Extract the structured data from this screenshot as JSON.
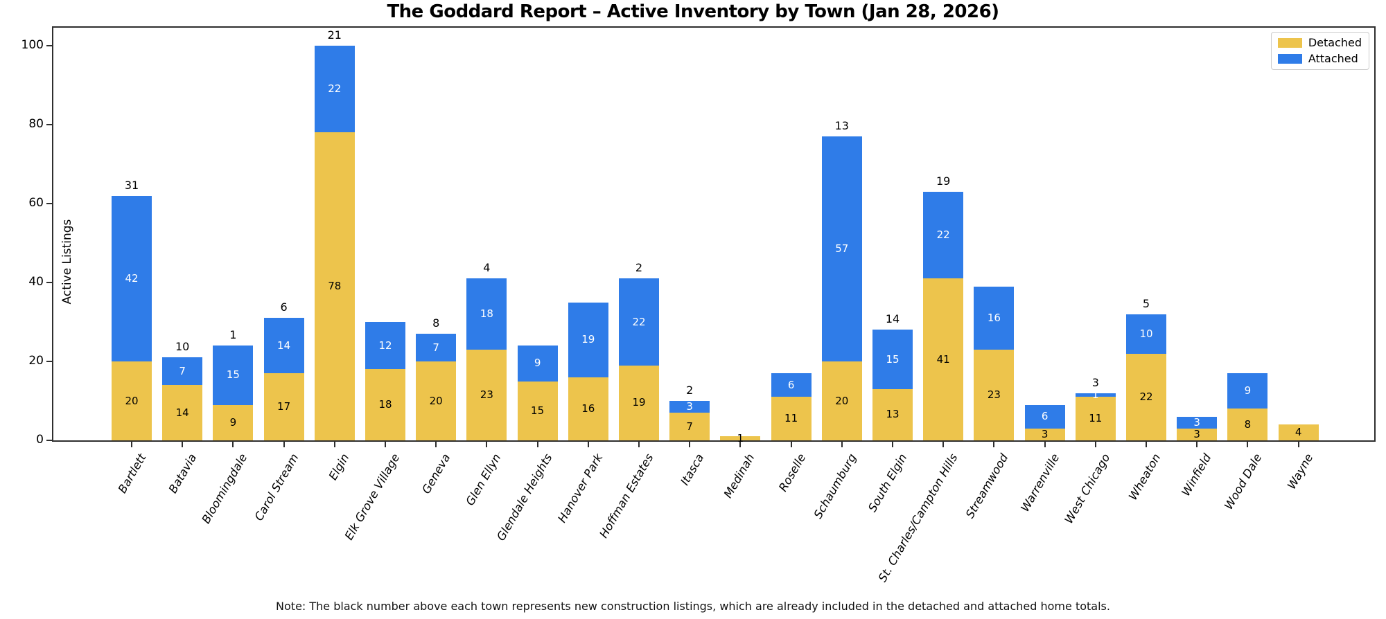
{
  "chart_data": {
    "type": "bar",
    "stacked": true,
    "title": "The Goddard Report – Active Inventory by Town (Jan 28, 2026)",
    "ylabel": "Active Listings",
    "ylim": [
      0,
      105
    ],
    "yticks": [
      0,
      20,
      40,
      60,
      80,
      100
    ],
    "grid": false,
    "legend_position": "upper-right",
    "categories": [
      "Bartlett",
      "Batavia",
      "Bloomingdale",
      "Carol Stream",
      "Elgin",
      "Elk Grove Village",
      "Geneva",
      "Glen Ellyn",
      "Glendale Heights",
      "Hanover Park",
      "Hoffman Estates",
      "Itasca",
      "Medinah",
      "Roselle",
      "Schaumburg",
      "South Elgin",
      "St. Charles/Campton Hills",
      "Streamwood",
      "Warrenville",
      "West Chicago",
      "Wheaton",
      "Winfield",
      "Wood Dale",
      "Wayne"
    ],
    "series": [
      {
        "name": "Detached",
        "color": "#EDC44C",
        "label_color": "#000000",
        "values": [
          20,
          14,
          9,
          17,
          78,
          18,
          20,
          23,
          15,
          16,
          19,
          7,
          1,
          11,
          20,
          13,
          41,
          23,
          3,
          11,
          22,
          3,
          8,
          4
        ]
      },
      {
        "name": "Attached",
        "color": "#2F7CE8",
        "label_color": "#ffffff",
        "values": [
          42,
          7,
          15,
          14,
          22,
          12,
          7,
          18,
          9,
          19,
          22,
          3,
          0,
          6,
          57,
          15,
          22,
          16,
          6,
          1,
          10,
          3,
          9,
          0
        ]
      }
    ],
    "new_construction_labels": [
      31,
      10,
      1,
      6,
      21,
      null,
      8,
      4,
      null,
      null,
      2,
      2,
      null,
      null,
      13,
      14,
      19,
      null,
      null,
      3,
      5,
      null,
      null,
      null
    ],
    "legend": [
      {
        "label": "Detached",
        "color": "#EDC44C"
      },
      {
        "label": "Attached",
        "color": "#2F7CE8"
      }
    ],
    "note": "Note: The black number above each town represents new construction listings, which are already included in the detached and attached home totals."
  }
}
